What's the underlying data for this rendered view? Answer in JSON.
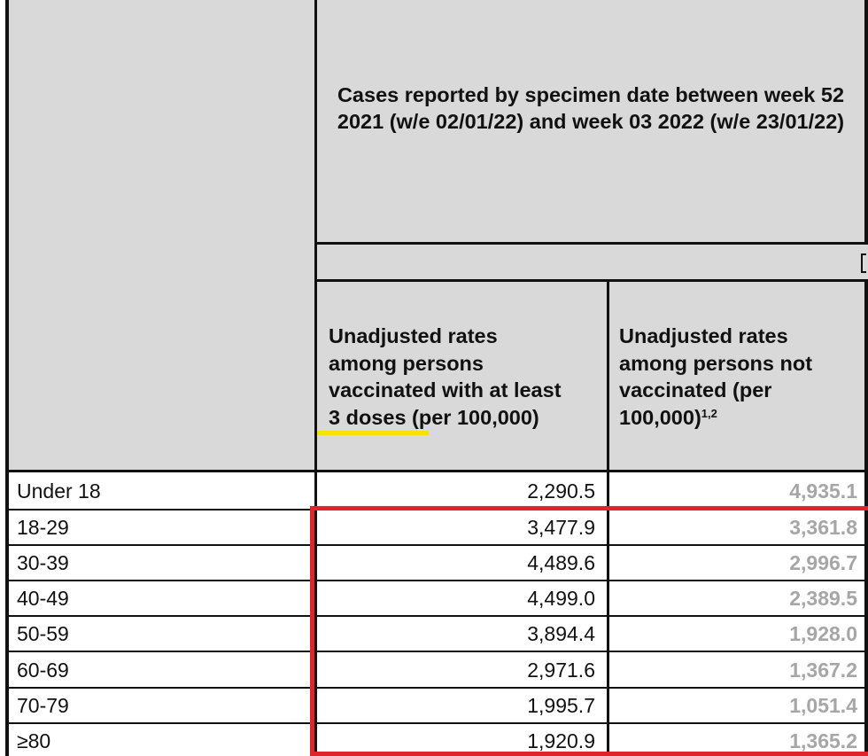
{
  "table": {
    "title": "Cases reported by specimen date between week 52 2021 (w/e 02/01/22) and week 03 2022 (w/e 23/01/22)",
    "col1_header": {
      "line1": "Unadjusted rates",
      "line2": "among persons",
      "line3": "vaccinated with at least",
      "line4_highlight": "3 doses",
      "line4_rest": " (per 100,000)"
    },
    "col2_header": {
      "line1": "Unadjusted rates",
      "line2": "among persons not",
      "line3": "vaccinated (per",
      "line4": "100,000)",
      "superscript": "1,2"
    },
    "rows": [
      {
        "age": "Under 18",
        "vaccinated_3_doses": "2,290.5",
        "not_vaccinated": "4,935.1"
      },
      {
        "age": "18-29",
        "vaccinated_3_doses": "3,477.9",
        "not_vaccinated": "3,361.8"
      },
      {
        "age": "30-39",
        "vaccinated_3_doses": "4,489.6",
        "not_vaccinated": "2,996.7"
      },
      {
        "age": "40-49",
        "vaccinated_3_doses": "4,499.0",
        "not_vaccinated": "2,389.5"
      },
      {
        "age": "50-59",
        "vaccinated_3_doses": "3,894.4",
        "not_vaccinated": "1,928.0"
      },
      {
        "age": "60-69",
        "vaccinated_3_doses": "2,971.6",
        "not_vaccinated": "1,367.2"
      },
      {
        "age": "70-79",
        "vaccinated_3_doses": "1,995.7",
        "not_vaccinated": "1,051.4"
      },
      {
        "age": "≥80",
        "vaccinated_3_doses": "1,920.9",
        "not_vaccinated": "1,365.2"
      }
    ]
  },
  "annotations": {
    "highlight_color": "#f5e400",
    "box_color": "#e0242b"
  },
  "colors": {
    "header_fill": "#d9d9d9",
    "unvaccinated_value_text": "#a6a6a6"
  }
}
